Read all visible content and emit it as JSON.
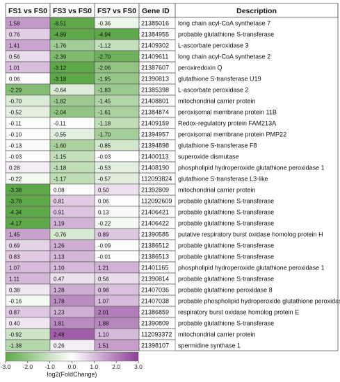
{
  "chart_data": {
    "type": "heatmap",
    "columns": [
      "FS1 vs FS0",
      "FS3 vs FS0",
      "FS7 vs FS0",
      "Gene ID",
      "Description"
    ],
    "rows": [
      {
        "values": [
          1.58,
          -8.51,
          -0.36
        ],
        "gene_id": "21385016",
        "description": "long chain acyl-CoA synthetase 7"
      },
      {
        "values": [
          0.76,
          -4.89,
          -4.94
        ],
        "gene_id": "21384955",
        "description": "probable glutathione S-transferase"
      },
      {
        "values": [
          1.41,
          -1.76,
          -1.12
        ],
        "gene_id": "21409302",
        "description": "L-ascorbate peroxidase 3"
      },
      {
        "values": [
          0.56,
          -2.39,
          -2.7
        ],
        "gene_id": "21409611",
        "description": "long chain acyl-CoA synthetase 2"
      },
      {
        "values": [
          1.01,
          -3.12,
          -2.06
        ],
        "gene_id": "21387607",
        "description": "peroxiredoxin Q"
      },
      {
        "values": [
          0.06,
          -3.18,
          -1.95
        ],
        "gene_id": "21390813",
        "description": "glutathione S-transferase U19"
      },
      {
        "values": [
          -2.29,
          -0.64,
          -1.83
        ],
        "gene_id": "21385398",
        "description": "L-ascorbate peroxidase 2"
      },
      {
        "values": [
          -0.7,
          -1.82,
          -1.45
        ],
        "gene_id": "21408801",
        "description": "mitochondrial carrier protein"
      },
      {
        "values": [
          -0.52,
          -2.04,
          -1.61
        ],
        "gene_id": "21384874",
        "description": "peroxisomal membrane protein 11B"
      },
      {
        "values": [
          -0.11,
          -0.11,
          -1.18
        ],
        "gene_id": "21409159",
        "description": "Redox-regulatory protein FAM213A"
      },
      {
        "values": [
          -0.1,
          -0.55,
          -1.7
        ],
        "gene_id": "21394957",
        "description": "peroxisomal membrane protein PMP22"
      },
      {
        "values": [
          -0.13,
          -1.6,
          -0.85
        ],
        "gene_id": "21394898",
        "description": "glutathione S-transferase F8"
      },
      {
        "values": [
          -0.03,
          -1.15,
          -0.03
        ],
        "gene_id": "21400113",
        "description": "superoxide dismutase"
      },
      {
        "values": [
          0.28,
          -1.18,
          -0.53
        ],
        "gene_id": "21408190",
        "description": "phospholipid hydroperoxide glutathione peroxidase 1"
      },
      {
        "values": [
          -0.22,
          -1.17,
          -0.57
        ],
        "gene_id": "112093824",
        "description": "glutathione S-transferase L3-like"
      },
      {
        "values": [
          -3.38,
          0.08,
          0.5
        ],
        "gene_id": "21392809",
        "description": "mitochondrial carrier protein"
      },
      {
        "values": [
          -3.78,
          0.81,
          0.06
        ],
        "gene_id": "112092609",
        "description": "probable glutathione S-transferase"
      },
      {
        "values": [
          -4.34,
          0.91,
          0.13
        ],
        "gene_id": "21406421",
        "description": "probable glutathione S-transferase"
      },
      {
        "values": [
          -4.17,
          1.19,
          -0.22
        ],
        "gene_id": "21406422",
        "description": "probable glutathione S-transferase"
      },
      {
        "values": [
          1.45,
          -0.76,
          0.89
        ],
        "gene_id": "21390585",
        "description": "putative respiratory burst oxidase homolog protein H"
      },
      {
        "values": [
          0.69,
          1.26,
          -0.09
        ],
        "gene_id": "21386512",
        "description": "probable glutathione S-transferase"
      },
      {
        "values": [
          0.83,
          1.13,
          -0.01
        ],
        "gene_id": "21386513",
        "description": "probable glutathione S-transferase"
      },
      {
        "values": [
          1.07,
          1.1,
          1.21
        ],
        "gene_id": "21401165",
        "description": "phospholipid hydroperoxide glutathione peroxidase 1"
      },
      {
        "values": [
          1.11,
          0.47,
          0.56
        ],
        "gene_id": "21390814",
        "description": "probable glutathione S-transferase"
      },
      {
        "values": [
          0.38,
          1.28,
          0.98
        ],
        "gene_id": "21407036",
        "description": "probable glutathione peroxidase 8"
      },
      {
        "values": [
          -0.16,
          1.78,
          1.07
        ],
        "gene_id": "21407038",
        "description": "probable phospholipid hydroperoxide glutathione peroxidase"
      },
      {
        "values": [
          0.87,
          1.23,
          2.01
        ],
        "gene_id": "21386859",
        "description": "respiratory burst oxidase homolog protein E"
      },
      {
        "values": [
          0.4,
          1.81,
          1.88
        ],
        "gene_id": "21390809",
        "description": "probable glutathione S-transferase"
      },
      {
        "values": [
          -0.92,
          2.48,
          1.1
        ],
        "gene_id": "112093372",
        "description": "mitochondrial carrier protein"
      },
      {
        "values": [
          -1.38,
          0.26,
          1.51
        ],
        "gene_id": "21398107",
        "description": "spermidine synthase 1"
      }
    ],
    "color_scale": {
      "min": -3.0,
      "max": 3.0,
      "low_color": "#5fa84a",
      "mid_color": "#ffffff",
      "high_color": "#8b3f96",
      "ticks": [
        -3.0,
        -2.0,
        -1.0,
        0.0,
        1.0,
        2.0,
        3.0
      ],
      "tick_labels": [
        "-3.0",
        "-2.0",
        "-1.0",
        "0.0",
        "1.0",
        "2.0",
        "3.0"
      ],
      "label": "log2(FoldChange)"
    },
    "legend_placement": "bottom-left"
  }
}
